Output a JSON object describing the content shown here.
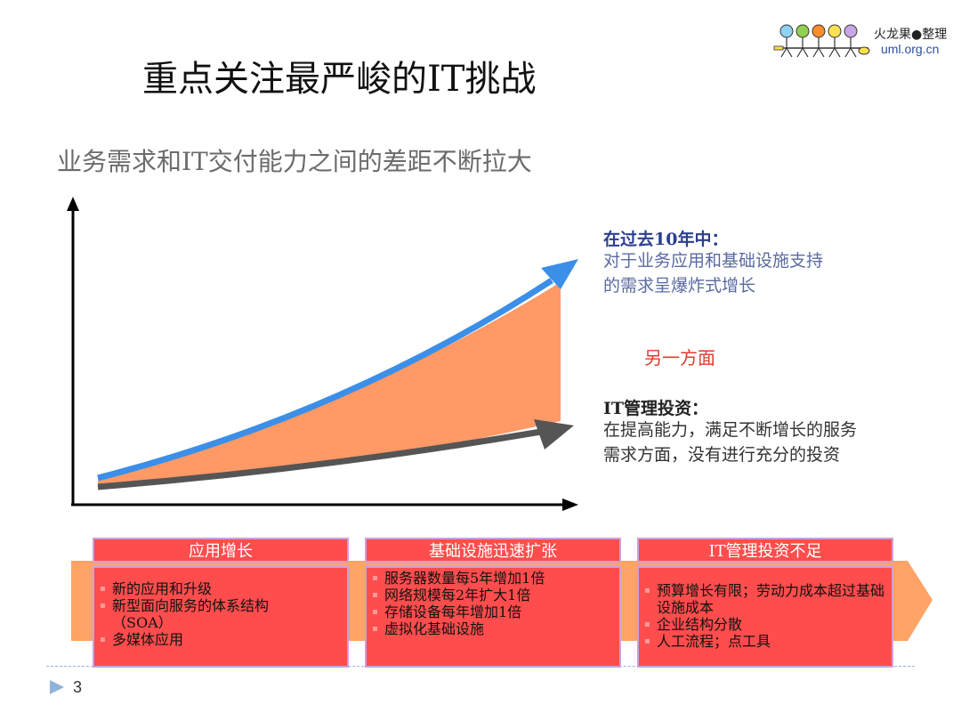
{
  "title": "重点关注最严峻的IT挑战",
  "subtitle": "业务需求和IT交付能力之间的差距不断拉大",
  "logo": {
    "text": "火龙果●整理",
    "url": "uml.org.cn"
  },
  "notes": {
    "past_heading": "在过去10年中：",
    "past_line1": "对于业务应用和基础设施支持",
    "past_line2": "的需求呈爆炸式增长",
    "other_hand": "另一方面",
    "it_heading": "IT管理投资：",
    "it_line1": "在提高能力，满足不断增长的服务",
    "it_line2": "需求方面，没有进行充分的投资"
  },
  "boxes": [
    {
      "heading": "应用增长",
      "items": [
        "新的应用和升级",
        "新型面向服务的体系结构（SOA）",
        "多媒体应用"
      ]
    },
    {
      "heading": "基础设施迅速扩张",
      "items": [
        "服务器数量每5年增加1倍",
        "网络规模每2年扩大1倍",
        "存储设备每年增加1倍",
        "虚拟化基础设施"
      ]
    },
    {
      "heading": "IT管理投资不足",
      "items": [
        "预算增长有限；劳动力成本超过基础设施成本",
        "企业结构分散",
        "人工流程；点工具"
      ]
    }
  ],
  "page_number": "3",
  "colors": {
    "demand": "#3b8fe8",
    "gap": "#ff9966",
    "investment": "#555555",
    "box": "#ff4d4d",
    "box_border": "#c9a0dc",
    "band": "#ffa366"
  }
}
